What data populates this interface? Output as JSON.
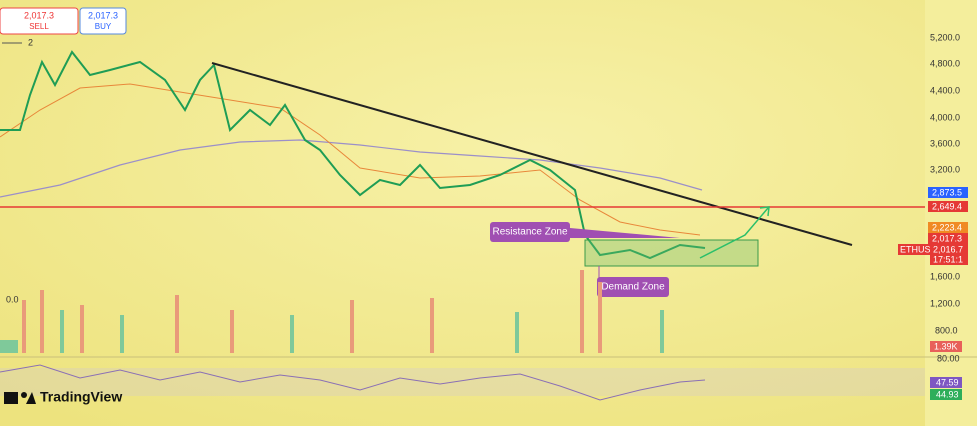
{
  "order_panel": {
    "sell_price": "2,017.3",
    "sell_label": "SELL",
    "buy_price": "2,017.3",
    "buy_label": "BUY",
    "indicator_count": "2",
    "volume_value": "0.0"
  },
  "price_axis": {
    "ticks": [
      "5,200.0",
      "4,800.0",
      "4,400.0",
      "4,000.0",
      "3,600.0",
      "3,200.0",
      "1,600.0",
      "1,200.0",
      "800.0"
    ],
    "rsi_top": "80.00"
  },
  "price_tags": {
    "level_blue": "2,873.5",
    "level_red": "2,649.4",
    "level_orange": "2,223.4",
    "level_current": "2,017.3",
    "symbol": "ETHUSD",
    "last_price": "2,016.7",
    "countdown": "17:51:1",
    "volume": "1.39K",
    "rsi": "47.59",
    "rsi_ma": "44.93"
  },
  "annotations": {
    "resistance": "Resistance Zone",
    "demand": "Demand Zone"
  },
  "brand": "TradingView"
}
